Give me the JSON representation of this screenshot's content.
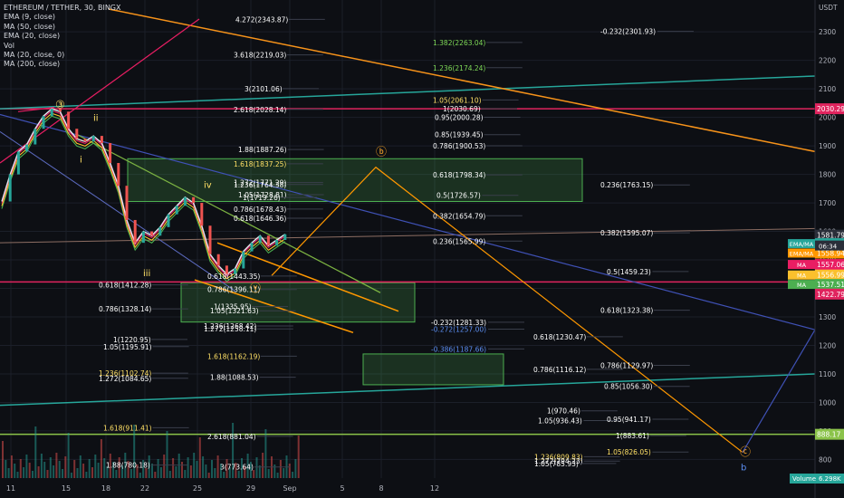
{
  "chart_data": {
    "type": "line",
    "title": "ETHEREUM / TETHER, 30, BINGX",
    "indicators": [
      "EMA (9, close)",
      "MA (50, close)",
      "EMA (20, close)",
      "Vol",
      "MA (20, close, 0)",
      "MA (200, close)"
    ],
    "currency": "USDT",
    "x_ticks": [
      "11",
      "15",
      "18",
      "22",
      "25",
      "29",
      "Sep",
      "5",
      "8",
      "12"
    ],
    "y_ticks": [
      2300,
      2200,
      2100,
      2000,
      1900,
      1800,
      1700,
      1600,
      1500,
      1400,
      1300,
      1200,
      1100,
      1000,
      900,
      800
    ],
    "ylim": [
      760,
      2380
    ],
    "price_path": [
      {
        "i": 0,
        "y": 1705
      },
      {
        "i": 2,
        "y": 1800
      },
      {
        "i": 4,
        "y": 1880
      },
      {
        "i": 6,
        "y": 1905
      },
      {
        "i": 8,
        "y": 1960
      },
      {
        "i": 10,
        "y": 2005
      },
      {
        "i": 12,
        "y": 2030
      },
      {
        "i": 14,
        "y": 2020
      },
      {
        "i": 16,
        "y": 1960
      },
      {
        "i": 18,
        "y": 1925
      },
      {
        "i": 20,
        "y": 1915
      },
      {
        "i": 22,
        "y": 1935
      },
      {
        "i": 24,
        "y": 1910
      },
      {
        "i": 26,
        "y": 1840
      },
      {
        "i": 28,
        "y": 1760
      },
      {
        "i": 30,
        "y": 1640
      },
      {
        "i": 32,
        "y": 1560
      },
      {
        "i": 34,
        "y": 1600
      },
      {
        "i": 36,
        "y": 1585
      },
      {
        "i": 38,
        "y": 1615
      },
      {
        "i": 40,
        "y": 1660
      },
      {
        "i": 42,
        "y": 1690
      },
      {
        "i": 44,
        "y": 1720
      },
      {
        "i": 46,
        "y": 1700
      },
      {
        "i": 48,
        "y": 1620
      },
      {
        "i": 50,
        "y": 1520
      },
      {
        "i": 52,
        "y": 1480
      },
      {
        "i": 54,
        "y": 1450
      },
      {
        "i": 56,
        "y": 1470
      },
      {
        "i": 58,
        "y": 1530
      },
      {
        "i": 60,
        "y": 1560
      },
      {
        "i": 62,
        "y": 1585
      },
      {
        "i": 64,
        "y": 1550
      },
      {
        "i": 66,
        "y": 1570
      },
      {
        "i": 68,
        "y": 1590
      }
    ],
    "current_price": "1581.79",
    "countdown": "06:34",
    "price_labels": [
      {
        "text": "2030.29",
        "y": 2030.29,
        "color": "#e0245e"
      },
      {
        "text": "1581.79",
        "y": 1587,
        "color": "#2a2e39"
      },
      {
        "text": "1564.86",
        "y": 1557,
        "color": "#26a69a",
        "tag": "EMA/MA"
      },
      {
        "text": "1558.94",
        "y": 1524,
        "color": "#ff9800",
        "tag": "EMA/MA"
      },
      {
        "text": "1557.06",
        "y": 1484,
        "color": "#e91e63",
        "tag": "MA"
      },
      {
        "text": "1556.99",
        "y": 1447,
        "color": "#fbc02d",
        "tag": "MA"
      },
      {
        "text": "1537.51",
        "y": 1414,
        "color": "#4caf50",
        "tag": "MA"
      },
      {
        "text": "1422.79",
        "y": 1380,
        "color": "#e0245e"
      },
      {
        "text": "888.17",
        "y": 888.17,
        "color": "#8bc34a"
      }
    ],
    "fib_levels": [
      {
        "text": "4.272(2343.87)",
        "y": 2343.87,
        "color": "#ffffff"
      },
      {
        "text": "3.618(2219.03)",
        "y": 2219.03,
        "color": "#ffffff"
      },
      {
        "text": "3(2101.06)",
        "y": 2101.06,
        "color": "#ffffff"
      },
      {
        "text": "2.618(2028.14)",
        "y": 2028.14,
        "color": "#ffffff"
      },
      {
        "text": "1.88(1887.26)",
        "y": 1887.26,
        "color": "#ffffff"
      },
      {
        "text": "1.618(1837.25)",
        "y": 1837.25,
        "color": "#ffe066"
      },
      {
        "text": "1.272(1771.29)",
        "y": 1771.29,
        "color": "#ffffff"
      },
      {
        "text": "1.236(1764.38)",
        "y": 1764.38,
        "color": "#ffffff"
      },
      {
        "text": "1.05(1728.81)",
        "y": 1728.81,
        "color": "#ffffff"
      },
      {
        "text": "1(1719.26)",
        "y": 1719.26,
        "color": "#ffffff"
      },
      {
        "text": "0.786(1678.43)",
        "y": 1678.43,
        "color": "#ffffff"
      },
      {
        "text": "0.618(1646.36)",
        "y": 1646.36,
        "color": "#ffffff"
      },
      {
        "text": "0.618(1443.35)",
        "y": 1443.35,
        "color": "#ffffff"
      },
      {
        "text": "0.618(1412.28)",
        "y": 1412.28,
        "color": "#ffffff"
      },
      {
        "text": "0.786(1396.11)",
        "y": 1396.11,
        "color": "#ffffff"
      },
      {
        "text": "0.786(1328.14)",
        "y": 1328.14,
        "color": "#ffffff"
      },
      {
        "text": "1(1335.95)",
        "y": 1335.95,
        "color": "#ffffff"
      },
      {
        "text": "1.05(1321.63)",
        "y": 1321.63,
        "color": "#ffffff"
      },
      {
        "text": "1.236(1268.42)",
        "y": 1268.42,
        "color": "#ffffff"
      },
      {
        "text": "1.272(1258.11)",
        "y": 1258.11,
        "color": "#ffffff"
      },
      {
        "text": "1(1220.95)",
        "y": 1220.95,
        "color": "#ffffff"
      },
      {
        "text": "1.05(1195.91)",
        "y": 1195.91,
        "color": "#ffffff"
      },
      {
        "text": "1.618(1162.19)",
        "y": 1162.19,
        "color": "#ffe066"
      },
      {
        "text": "1.236(1102.74)",
        "y": 1102.74,
        "color": "#ffe066"
      },
      {
        "text": "1.272(1084.65)",
        "y": 1084.65,
        "color": "#ffffff"
      },
      {
        "text": "1.88(1088.53)",
        "y": 1088.53,
        "color": "#ffffff"
      },
      {
        "text": "1.618(911.41)",
        "y": 911.41,
        "color": "#ffe066"
      },
      {
        "text": "2.618(881.04)",
        "y": 881.04,
        "color": "#ffffff"
      },
      {
        "text": "1.88(780.18)",
        "y": 780.18,
        "color": "#ffffff"
      },
      {
        "text": "3(773.64)",
        "y": 773.64,
        "color": "#ffffff"
      },
      {
        "text": "1.382(2263.04)",
        "y": 2263.04,
        "color": "#7ed957"
      },
      {
        "text": "1.236(2174.24)",
        "y": 2174.24,
        "color": "#7ed957"
      },
      {
        "text": "1.05(2061.10)",
        "y": 2061.1,
        "color": "#ffe066"
      },
      {
        "text": "1(2030.69)",
        "y": 2030.69,
        "color": "#ffffff"
      },
      {
        "text": "0.95(2000.28)",
        "y": 2000.28,
        "color": "#ffffff"
      },
      {
        "text": "0.85(1939.45)",
        "y": 1939.45,
        "color": "#ffffff"
      },
      {
        "text": "0.786(1900.53)",
        "y": 1900.53,
        "color": "#ffffff"
      },
      {
        "text": "0.618(1798.34)",
        "y": 1798.34,
        "color": "#ffffff"
      },
      {
        "text": "0.5(1726.57)",
        "y": 1726.57,
        "color": "#ffffff"
      },
      {
        "text": "0.382(1654.79)",
        "y": 1654.79,
        "color": "#ffffff"
      },
      {
        "text": "0.236(1565.99)",
        "y": 1565.99,
        "color": "#ffffff"
      },
      {
        "text": "-0.232(1281.33)",
        "y": 1281.33,
        "color": "#ffffff"
      },
      {
        "text": "-0.272(1257.00)",
        "y": 1257.0,
        "color": "#5b8def"
      },
      {
        "text": "-0.386(1187.66)",
        "y": 1187.66,
        "color": "#5b8def"
      },
      {
        "text": "-0.232(2301.93)",
        "y": 2301.93,
        "color": "#ffffff"
      },
      {
        "text": "0.236(1763.15)",
        "y": 1763.15,
        "color": "#ffffff"
      },
      {
        "text": "0.382(1595.07)",
        "y": 1595.07,
        "color": "#ffffff"
      },
      {
        "text": "0.5(1459.23)",
        "y": 1459.23,
        "color": "#ffffff"
      },
      {
        "text": "0.618(1323.38)",
        "y": 1323.38,
        "color": "#ffffff"
      },
      {
        "text": "0.618(1230.47)",
        "y": 1230.47,
        "color": "#ffffff"
      },
      {
        "text": "0.786(1129.97)",
        "y": 1129.97,
        "color": "#ffffff"
      },
      {
        "text": "0.786(1116.12)",
        "y": 1116.12,
        "color": "#ffffff"
      },
      {
        "text": "0.85(1056.30)",
        "y": 1056.3,
        "color": "#ffffff"
      },
      {
        "text": "1(970.46)",
        "y": 970.46,
        "color": "#ffffff"
      },
      {
        "text": "1.05(936.43)",
        "y": 936.43,
        "color": "#ffffff"
      },
      {
        "text": "0.95(941.17)",
        "y": 941.17,
        "color": "#ffffff"
      },
      {
        "text": "1(883.61)",
        "y": 883.61,
        "color": "#ffffff"
      },
      {
        "text": "1.05(826.05)",
        "y": 826.05,
        "color": "#ffe066"
      },
      {
        "text": "1.236(809.83)",
        "y": 809.83,
        "color": "#ffe066"
      },
      {
        "text": "1.272(794.23)",
        "y": 794.23,
        "color": "#ffffff"
      },
      {
        "text": "1.05(785.93)",
        "y": 785.93,
        "color": "#ffffff"
      }
    ],
    "wave_labels": [
      {
        "text": "③",
        "y": 2045,
        "color": "#ffe066"
      },
      {
        "text": "ii",
        "y": 2000,
        "color": "#ffe066"
      },
      {
        "text": "i",
        "y": 1855,
        "color": "#ffe066"
      },
      {
        "text": "iii",
        "y": 1455,
        "color": "#ffe066"
      },
      {
        "text": "iv",
        "y": 1765,
        "color": "#ffe066"
      },
      {
        "text": "ⓥ",
        "y": 1402,
        "color": "#ffa726"
      },
      {
        "text": "ⓑ",
        "y": 1880,
        "color": "#ffa726"
      },
      {
        "text": "ⓒ",
        "y": 826,
        "color": "#ffa726"
      },
      {
        "text": "b",
        "y": 775,
        "color": "#5b8def"
      }
    ],
    "volume_label": "Volume",
    "volume_value": "6.298K"
  }
}
